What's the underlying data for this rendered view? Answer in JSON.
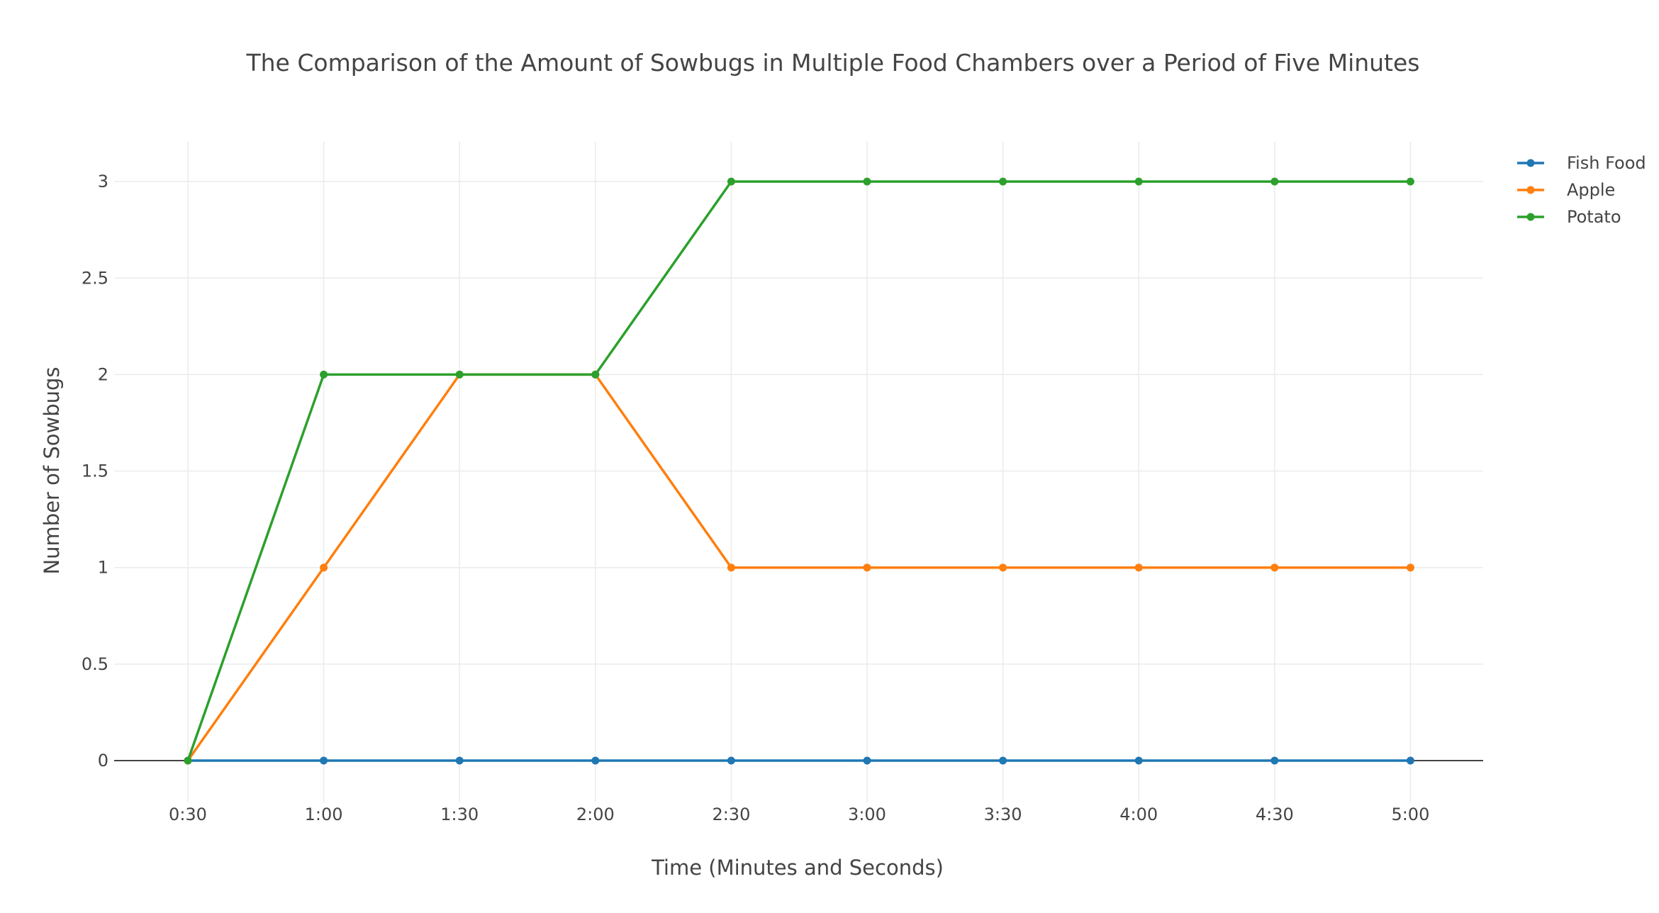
{
  "chart_data": {
    "type": "line",
    "title": "The Comparison of the Amount of Sowbugs in Multiple Food Chambers over a Period of Five Minutes",
    "xlabel": "Time (Minutes and Seconds)",
    "ylabel": "Number of Sowbugs",
    "categories": [
      "0:30",
      "1:00",
      "1:30",
      "2:00",
      "2:30",
      "3:00",
      "3:30",
      "4:00",
      "4:30",
      "5:00"
    ],
    "ylim": [
      -0.2,
      3.2
    ],
    "yticks": [
      0,
      0.5,
      1,
      1.5,
      2,
      2.5,
      3
    ],
    "ytick_labels": [
      "0",
      "0.5",
      "1",
      "1.5",
      "2",
      "2.5",
      "3"
    ],
    "grid": true,
    "legend_position": "top-right",
    "series": [
      {
        "name": "Fish Food",
        "color": "#1f77b4",
        "values": [
          0,
          0,
          0,
          0,
          0,
          0,
          0,
          0,
          0,
          0
        ]
      },
      {
        "name": "Apple",
        "color": "#ff7f0e",
        "values": [
          0,
          1,
          2,
          2,
          1,
          1,
          1,
          1,
          1,
          1
        ]
      },
      {
        "name": "Potato",
        "color": "#2ca02c",
        "values": [
          0,
          2,
          2,
          2,
          3,
          3,
          3,
          3,
          3,
          3
        ]
      }
    ]
  }
}
